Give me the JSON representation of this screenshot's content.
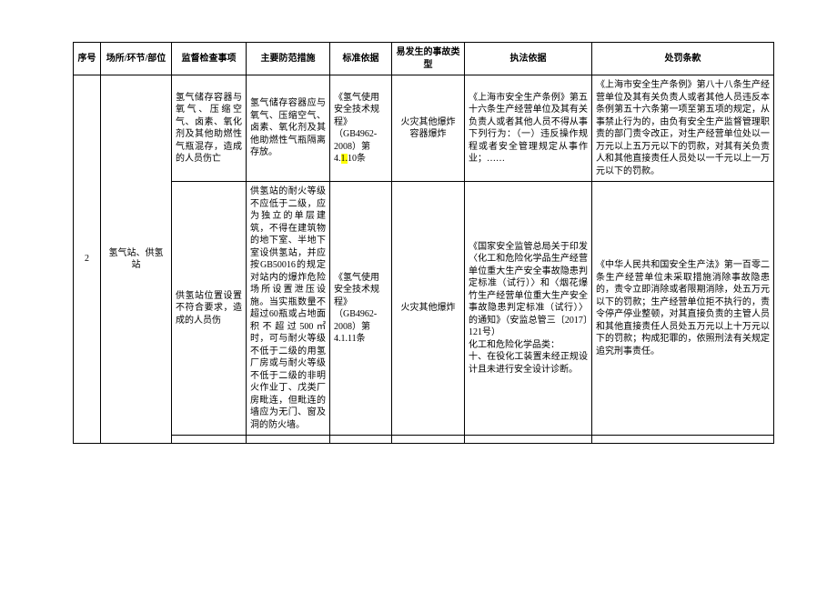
{
  "headers": {
    "c1": "序号",
    "c2": "场所/环节/部位",
    "c3": "监督检查事项",
    "c4": "主要防范措施",
    "c5": "标准依据",
    "c6": "易发生的事故类型",
    "c7": "执法依据",
    "c8": "处罚条款"
  },
  "row1": {
    "c3": "氢气储存容器与氧气、压缩空气、卤素、氧化剂及其他助燃性气瓶混存，造成的人员伤亡",
    "c4": "氢气储存容器应与氧气、压缩空气、卤素、氧化剂及其他助燃性气瓶隔离存放。",
    "c5_pre": "《氢气使用安全技术规程》（GB4962-2008）第4.",
    "c5_hl": "1.",
    "c5_post": "10条",
    "c6": "火灾其他爆炸 容器爆炸",
    "c7": "《上海市安全生产条例》第五十六条生产经营单位及其有关负责人或者其他人员不得从事下列行为：（一）违反操作规程或者安全管理规定从事作业；……",
    "c8": "《上海市安全生产条例》第八十八条生产经营单位及其有关负责人或者其他人员违反本条例第五十六条第一项至第五项的规定，从事禁止行为的，由负有安全生产监督管理职责的部门责令改正，对生产经营单位处以一万元以上五万元以下的罚款，对其有关负责人和其他直接责任人员处以一千元以上一万元以下的罚款。"
  },
  "merged": {
    "seq": "2",
    "place": "氢气站、供氢站"
  },
  "row2": {
    "c3": "供氢站位置设置不符合要求，造成的人员伤",
    "c4": "供氢站的耐火等级不应低于二级，应为独立的单层建筑，不得在建筑物的地下室、半地下室设供氢站，并应按GB50016的规定对站内的爆炸危险场所设置泄压设施。当实瓶数量不超过60瓶或占地面积不超过500㎡时，可与耐火等级不低于二级的用氢厂房或与耐火等级不低于二级的非明火作业丁、戊类厂房毗连，但毗连的墙应为无门、窗及洞的防火墙。",
    "c5": "《氢气使用安全技术规程》（GB4962-2008）第4.1.11条",
    "c6": "火灾其他爆炸",
    "c7": "《国家安全监管总局关于印发〈化工和危险化学品生产经营单位重大生产安全事故隐患判定标准（试行）〉和〈烟花爆竹生产经营单位重大生产安全事故隐患判定标准（试行）〉的通知》（安监总管三〔2017〕121号）\n化工和危险化学品类：\n十、在役化工装置未经正规设计且未进行安全设计诊断。",
    "c8": "《中华人民共和国安全生产法》第一百零二条生产经营单位未采取措施消除事故隐患的，责令立即消除或者限期消除，处五万元以下的罚款；生产经营单位拒不执行的，责令停产停业整顿，对其直接负责的主管人员和其他直接责任人员处五万元以上十万元以下的罚款；构成犯罪的，依照刑法有关规定追究刑事责任。"
  }
}
